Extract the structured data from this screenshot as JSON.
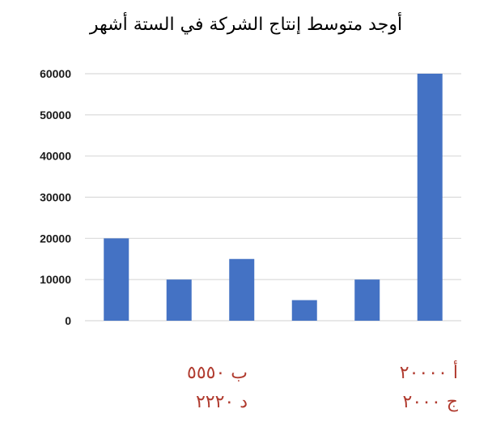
{
  "question": "أوجد متوسط إنتاج الشركة في الستة أشهر",
  "answers": {
    "a": "أ ٢٠٠٠٠",
    "b": "ب ٥٥٥٠",
    "c": "ج ٢٠٠٠",
    "d": "د ٢٢٢٠"
  },
  "chart_data": {
    "type": "bar",
    "categories": [
      "",
      "",
      "",
      "",
      "",
      ""
    ],
    "values": [
      20000,
      10000,
      15000,
      5000,
      10000,
      60000
    ],
    "yticks": [
      "0",
      "10000",
      "20000",
      "30000",
      "40000",
      "50000",
      "60000"
    ],
    "ylim": [
      0,
      60000
    ],
    "grid": true,
    "bar_color": "#4472c4",
    "grid_color": "#d9d9d9"
  }
}
